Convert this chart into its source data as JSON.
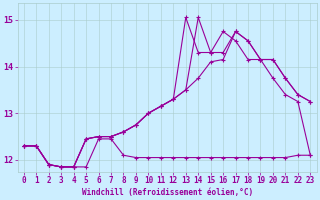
{
  "xlabel": "Windchill (Refroidissement éolien,°C)",
  "bg_color": "#cceeff",
  "line_color": "#990099",
  "grid_color": "#aacccc",
  "xlim": [
    -0.5,
    23.5
  ],
  "ylim": [
    11.75,
    15.35
  ],
  "yticks": [
    12,
    13,
    14,
    15
  ],
  "xticks": [
    0,
    1,
    2,
    3,
    4,
    5,
    6,
    7,
    8,
    9,
    10,
    11,
    12,
    13,
    14,
    15,
    16,
    17,
    18,
    19,
    20,
    21,
    22,
    23
  ],
  "series": [
    [
      12.3,
      12.3,
      11.9,
      11.85,
      11.85,
      11.85,
      12.45,
      12.45,
      12.1,
      12.05,
      12.05,
      12.05,
      12.05,
      12.05,
      12.05,
      12.05,
      12.05,
      12.05,
      12.05,
      12.05,
      12.05,
      12.05,
      12.1,
      12.1
    ],
    [
      12.3,
      12.3,
      11.9,
      11.85,
      11.85,
      12.45,
      12.5,
      12.5,
      12.6,
      12.75,
      13.0,
      13.15,
      13.3,
      13.5,
      13.75,
      14.1,
      14.15,
      14.75,
      14.55,
      14.15,
      14.15,
      13.75,
      13.4,
      13.25
    ],
    [
      12.3,
      12.3,
      11.9,
      11.85,
      11.85,
      12.45,
      12.5,
      12.5,
      12.6,
      12.75,
      13.0,
      13.15,
      13.3,
      13.5,
      15.05,
      14.3,
      14.3,
      14.75,
      14.55,
      14.15,
      14.15,
      13.75,
      13.4,
      13.25
    ],
    [
      12.3,
      12.3,
      11.9,
      11.85,
      11.85,
      12.45,
      12.5,
      12.5,
      12.6,
      12.75,
      13.0,
      13.15,
      13.3,
      15.05,
      14.3,
      14.3,
      14.75,
      14.55,
      14.15,
      14.15,
      13.75,
      13.4,
      13.25,
      12.1
    ]
  ],
  "lw": 0.8,
  "marker": "+",
  "ms": 3.5,
  "mew": 0.8,
  "tick_fontsize": 5.5,
  "xlabel_fontsize": 5.5
}
